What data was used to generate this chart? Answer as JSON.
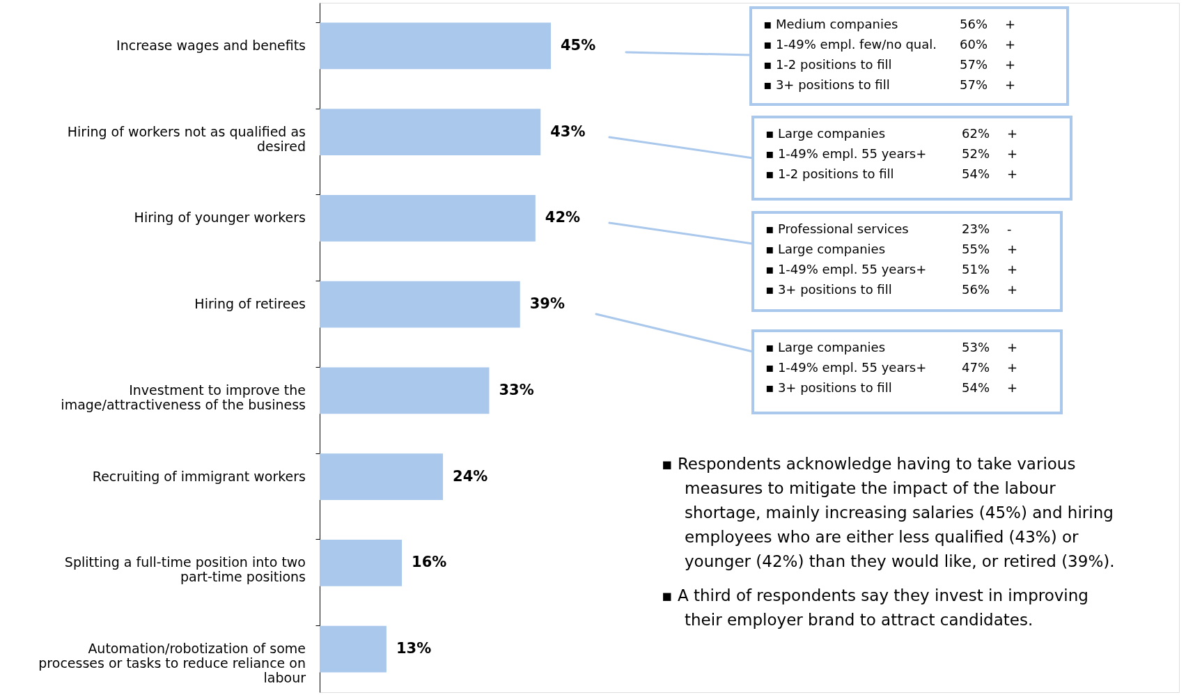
{
  "chart_data": {
    "type": "bar",
    "orientation": "horizontal",
    "categories": [
      "Increase wages and benefits",
      "Hiring of workers not as qualified as desired",
      "Hiring of younger workers",
      "Hiring of retirees",
      "Investment to improve the image/attractiveness of the business",
      "Recruiting of immigrant workers",
      "Splitting a full-time position into two part-time positions",
      "Automation/robotization of some processes or tasks to reduce reliance on labour"
    ],
    "values": [
      45,
      43,
      42,
      39,
      33,
      24,
      16,
      13
    ],
    "value_labels": [
      "45%",
      "43%",
      "42%",
      "39%",
      "33%",
      "24%",
      "16%",
      "13%"
    ],
    "color": "#aac8ec",
    "annotations": [
      "▪ Medium companies   56%   +\n▪ 1-49% empl. few/no qual.   60%   +\n▪ 1-2 positions to fill   57%   +\n▪ 3+ positions to fill   57%   +",
      "▪ Large companies   62%   +\n▪ 1-49% empl. 55 years+   52%   +\n▪ 1-2 positions to fill   54%   +",
      "▪ Professional services   23%   -\n▪ Large companies   55%   +\n▪ 1-49% empl. 55 years+   51%   +\n▪ 3+ positions to fill   56%   +",
      "▪ Large companies   53%   +\n▪ 1-49% empl. 55 years+   47%   +\n▪ 3+ positions to fill   54%   +",
      "▪ Respondents acknowledge having to take various measures to mitigate the impact of the labour shortage, mainly increasing salaries (45%) and hiring employees who are either less qualified (43%) or younger (42%) than they would like, or retired (39%).",
      "▪ A third of respondents say they invest in improving their employer brand to attract candidates."
    ]
  }
}
